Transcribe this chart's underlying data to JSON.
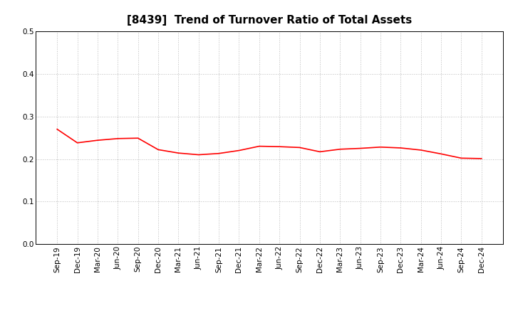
{
  "title": "[8439]  Trend of Turnover Ratio of Total Assets",
  "x_labels": [
    "Sep-19",
    "Dec-19",
    "Mar-20",
    "Jun-20",
    "Sep-20",
    "Dec-20",
    "Mar-21",
    "Jun-21",
    "Sep-21",
    "Dec-21",
    "Mar-22",
    "Jun-22",
    "Sep-22",
    "Dec-22",
    "Mar-23",
    "Jun-23",
    "Sep-23",
    "Dec-23",
    "Mar-24",
    "Jun-24",
    "Sep-24",
    "Dec-24"
  ],
  "y_values": [
    0.27,
    0.238,
    0.244,
    0.248,
    0.249,
    0.222,
    0.214,
    0.21,
    0.213,
    0.22,
    0.23,
    0.229,
    0.227,
    0.217,
    0.223,
    0.225,
    0.228,
    0.226,
    0.221,
    0.212,
    0.202,
    0.201
  ],
  "line_color": "#ff0000",
  "line_width": 1.2,
  "ylim": [
    0.0,
    0.5
  ],
  "yticks": [
    0.0,
    0.1,
    0.2,
    0.3,
    0.4,
    0.5
  ],
  "background_color": "#ffffff",
  "grid_color": "#bbbbbb",
  "title_fontsize": 11,
  "tick_fontsize": 7.5
}
